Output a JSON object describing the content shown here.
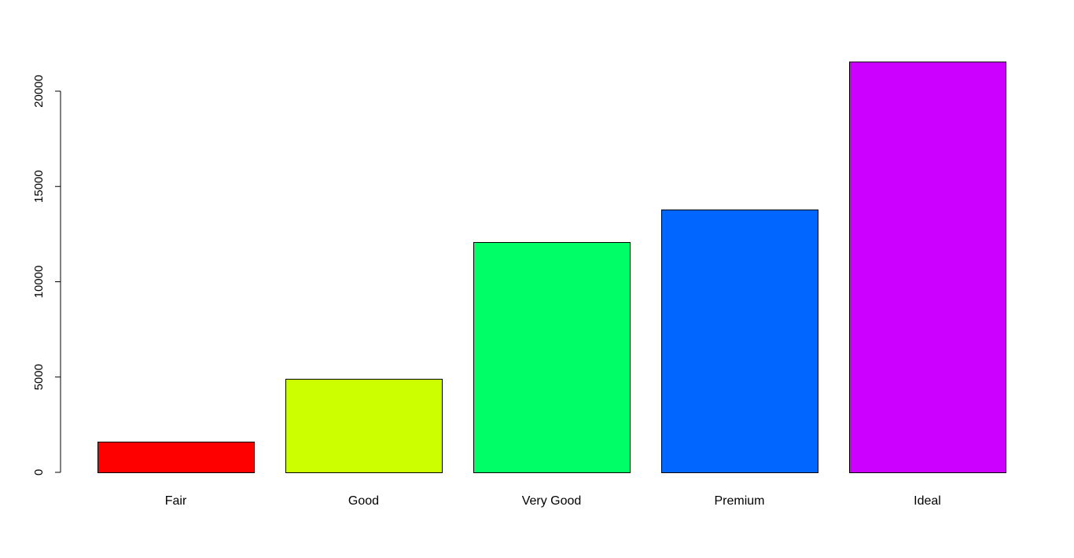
{
  "chart_data": {
    "type": "bar",
    "categories": [
      "Fair",
      "Good",
      "Very Good",
      "Premium",
      "Ideal"
    ],
    "values": [
      1610,
      4906,
      12082,
      13791,
      21551
    ],
    "colors": [
      "#FF0000",
      "#CCFF00",
      "#00FF66",
      "#0066FF",
      "#CC00FF"
    ],
    "y_ticks": [
      0,
      5000,
      10000,
      15000,
      20000
    ],
    "y_tick_labels": [
      "0",
      "5000",
      "10000",
      "15000",
      "20000"
    ],
    "ylim": [
      0,
      21551
    ],
    "title": "",
    "xlabel": "",
    "ylabel": "",
    "grid": false,
    "bar_border_color": "#000000"
  }
}
